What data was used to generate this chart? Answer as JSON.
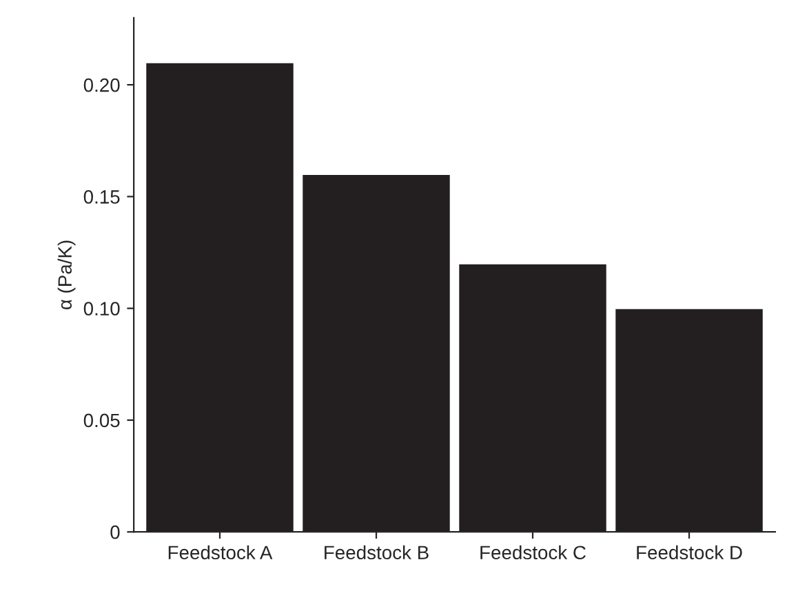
{
  "chart_data": {
    "type": "bar",
    "ylabel": "α (Pa/K)",
    "categories": [
      "Feedstock A",
      "Feedstock B",
      "Feedstock C",
      "Feedstock D"
    ],
    "values": [
      0.21,
      0.16,
      0.12,
      0.1
    ],
    "color": "#231f20",
    "ylim": [
      0,
      0.23
    ],
    "yticks": [
      0,
      0.05,
      {
        "value": 0.1,
        "label": "0.10"
      },
      0.15,
      {
        "value": 0.2,
        "label": "0.20"
      }
    ],
    "grid": false
  }
}
